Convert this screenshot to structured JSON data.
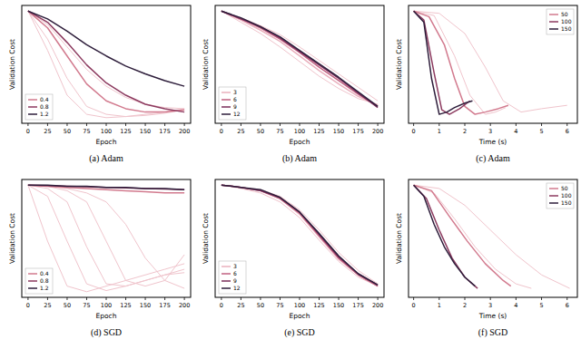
{
  "chart_data": [
    {
      "type": "line",
      "title": "(a) Adam",
      "x_label": "Epoch",
      "y_label": "Validation Cost",
      "x": [
        0,
        25,
        50,
        75,
        100,
        125,
        150,
        175,
        200
      ],
      "xlim": [
        -8,
        208
      ],
      "xticks": [
        0,
        25,
        50,
        75,
        100,
        125,
        150,
        175,
        200
      ],
      "ylim": [
        0,
        1.05
      ],
      "tick_labels": "x",
      "legend": "lower left",
      "series": [
        {
          "color": "#f0c4cc",
          "values": [
            1.0,
            0.75,
            0.4,
            0.15,
            0.08,
            0.06,
            0.07,
            0.09,
            0.12
          ]
        },
        {
          "color": "#f0c4cc",
          "values": [
            1.0,
            0.65,
            0.25,
            0.08,
            0.05,
            0.06,
            0.08,
            0.1,
            0.13
          ]
        },
        {
          "color": "#f0c4cc",
          "values": [
            1.0,
            0.88,
            0.68,
            0.48,
            0.33,
            0.23,
            0.17,
            0.14,
            0.13
          ]
        },
        {
          "name": "0.4",
          "color": "#d27a8e",
          "values": [
            1.0,
            0.85,
            0.6,
            0.35,
            0.2,
            0.13,
            0.1,
            0.1,
            0.12
          ]
        },
        {
          "name": "0.8",
          "color": "#8c3a5f",
          "values": [
            1.0,
            0.9,
            0.72,
            0.52,
            0.36,
            0.25,
            0.17,
            0.13,
            0.1
          ]
        },
        {
          "name": "1.2",
          "color": "#2e1e3b",
          "values": [
            1.0,
            0.93,
            0.82,
            0.7,
            0.6,
            0.51,
            0.44,
            0.38,
            0.33
          ]
        }
      ]
    },
    {
      "type": "line",
      "title": "(b) Adam",
      "x_label": "Epoch",
      "y_label": "Validation Cost",
      "x": [
        0,
        25,
        50,
        75,
        100,
        125,
        150,
        175,
        200
      ],
      "xlim": [
        -8,
        208
      ],
      "xticks": [
        0,
        25,
        50,
        75,
        100,
        125,
        150,
        175,
        200
      ],
      "ylim": [
        0,
        1.05
      ],
      "tick_labels": "x",
      "legend": "lower left",
      "series": [
        {
          "color": "#f0c4cc",
          "values": [
            1.0,
            0.9,
            0.8,
            0.68,
            0.55,
            0.42,
            0.31,
            0.22,
            0.17
          ]
        },
        {
          "color": "#f0c4cc",
          "values": [
            1.0,
            0.94,
            0.87,
            0.79,
            0.68,
            0.56,
            0.44,
            0.32,
            0.2
          ]
        },
        {
          "name": "3",
          "color": "#eab0bd",
          "values": [
            1.0,
            0.92,
            0.83,
            0.73,
            0.6,
            0.47,
            0.35,
            0.24,
            0.16
          ]
        },
        {
          "name": "6",
          "color": "#c06080",
          "values": [
            1.0,
            0.93,
            0.85,
            0.75,
            0.63,
            0.5,
            0.38,
            0.26,
            0.15
          ]
        },
        {
          "name": "9",
          "color": "#7a2e5a",
          "values": [
            1.0,
            0.93,
            0.86,
            0.76,
            0.64,
            0.52,
            0.4,
            0.27,
            0.14
          ]
        },
        {
          "name": "12",
          "color": "#2e1e3b",
          "values": [
            1.0,
            0.94,
            0.86,
            0.77,
            0.65,
            0.53,
            0.41,
            0.28,
            0.15
          ]
        }
      ]
    },
    {
      "type": "line",
      "title": "(c) Adam",
      "x_label": "Time (s)",
      "y_label": "Validation Cost",
      "xlim": [
        -0.2,
        6.4
      ],
      "xticks": [
        0,
        1,
        2,
        3,
        4,
        5,
        6
      ],
      "ylim": [
        0,
        1.05
      ],
      "tick_labels": "x",
      "legend": "upper right",
      "series": [
        {
          "color": "#f0c4cc",
          "x": [
            0,
            1.0,
            2.0,
            2.8,
            3.5,
            4.2,
            5.0,
            6.0
          ],
          "values": [
            1.0,
            0.98,
            0.8,
            0.5,
            0.2,
            0.1,
            0.13,
            0.16
          ]
        },
        {
          "color": "#f0c4cc",
          "x": [
            0,
            0.8,
            1.6,
            2.2,
            2.8,
            3.2,
            3.6
          ],
          "values": [
            1.0,
            0.96,
            0.6,
            0.25,
            0.08,
            0.1,
            0.14
          ]
        },
        {
          "name": "50",
          "color": "#d27a8e",
          "x": [
            0,
            0.6,
            1.2,
            1.6,
            2.0,
            2.4,
            2.8,
            3.3,
            3.7
          ],
          "values": [
            1.0,
            0.95,
            0.7,
            0.4,
            0.15,
            0.08,
            0.1,
            0.13,
            0.16
          ]
        },
        {
          "name": "100",
          "color": "#8c3a5f",
          "x": [
            0,
            0.4,
            0.8,
            1.1,
            1.4,
            1.8,
            2.2
          ],
          "values": [
            1.0,
            0.92,
            0.45,
            0.12,
            0.08,
            0.13,
            0.2
          ]
        },
        {
          "name": "150",
          "color": "#2e1e3b",
          "x": [
            0,
            0.4,
            0.7,
            1.0,
            1.3,
            1.6,
            2.0,
            2.3
          ],
          "values": [
            1.0,
            0.9,
            0.4,
            0.08,
            0.1,
            0.14,
            0.18,
            0.2
          ]
        }
      ]
    },
    {
      "type": "line",
      "title": "(d) SGD",
      "x_label": "Epoch",
      "y_label": "Validation Cost",
      "x": [
        0,
        25,
        50,
        75,
        100,
        125,
        150,
        175,
        200
      ],
      "xlim": [
        -8,
        208
      ],
      "xticks": [
        0,
        25,
        50,
        75,
        100,
        125,
        150,
        175,
        200
      ],
      "ylim": [
        0,
        1.05
      ],
      "tick_labels": "x",
      "legend": "lower left",
      "series": [
        {
          "color": "#f0c4cc",
          "values": [
            1.0,
            0.5,
            0.1,
            0.05,
            0.1,
            0.15,
            0.2,
            0.25,
            0.3
          ]
        },
        {
          "color": "#f0c4cc",
          "values": [
            1.0,
            0.9,
            0.5,
            0.12,
            0.06,
            0.1,
            0.15,
            0.2,
            0.25
          ]
        },
        {
          "color": "#f0c4cc",
          "values": [
            1.0,
            0.97,
            0.85,
            0.45,
            0.12,
            0.1,
            0.15,
            0.2,
            0.22
          ]
        },
        {
          "color": "#f0c4cc",
          "values": [
            1.0,
            0.99,
            0.95,
            0.85,
            0.5,
            0.15,
            0.1,
            0.15,
            0.38
          ]
        },
        {
          "color": "#f0c4cc",
          "values": [
            1.0,
            0.99,
            0.97,
            0.93,
            0.85,
            0.65,
            0.35,
            0.15,
            0.08
          ]
        },
        {
          "name": "0.4",
          "color": "#d27a8e",
          "values": [
            1.0,
            0.99,
            0.98,
            0.97,
            0.96,
            0.95,
            0.94,
            0.93,
            0.93
          ]
        },
        {
          "name": "0.8",
          "color": "#8c3a5f",
          "values": [
            1.0,
            0.995,
            0.99,
            0.985,
            0.98,
            0.975,
            0.97,
            0.965,
            0.96
          ]
        },
        {
          "name": "1.2",
          "color": "#2e1e3b",
          "values": [
            1.0,
            1.0,
            0.99,
            0.99,
            0.98,
            0.98,
            0.97,
            0.97,
            0.96
          ]
        }
      ]
    },
    {
      "type": "line",
      "title": "(e) SGD",
      "x_label": "Epoch",
      "y_label": "Validation Cost",
      "x": [
        0,
        25,
        50,
        75,
        100,
        125,
        150,
        175,
        200
      ],
      "xlim": [
        -8,
        208
      ],
      "xticks": [
        0,
        25,
        50,
        75,
        100,
        125,
        150,
        175,
        200
      ],
      "ylim": [
        0,
        1.05
      ],
      "tick_labels": "x",
      "legend": "lower left",
      "series": [
        {
          "color": "#f0c4cc",
          "values": [
            1.0,
            0.97,
            0.93,
            0.85,
            0.71,
            0.51,
            0.32,
            0.18,
            0.1
          ]
        },
        {
          "color": "#f0c4cc",
          "values": [
            1.0,
            0.98,
            0.96,
            0.9,
            0.78,
            0.6,
            0.4,
            0.24,
            0.12
          ]
        },
        {
          "name": "3",
          "color": "#eab0bd",
          "values": [
            1.0,
            0.98,
            0.95,
            0.88,
            0.74,
            0.54,
            0.34,
            0.2,
            0.1
          ]
        },
        {
          "name": "6",
          "color": "#c06080",
          "values": [
            1.0,
            0.98,
            0.95,
            0.88,
            0.75,
            0.55,
            0.35,
            0.2,
            0.1
          ]
        },
        {
          "name": "9",
          "color": "#7a2e5a",
          "values": [
            1.0,
            0.98,
            0.95,
            0.89,
            0.76,
            0.56,
            0.36,
            0.21,
            0.11
          ]
        },
        {
          "name": "12",
          "color": "#2e1e3b",
          "values": [
            1.0,
            0.98,
            0.96,
            0.89,
            0.76,
            0.57,
            0.37,
            0.21,
            0.11
          ]
        }
      ]
    },
    {
      "type": "line",
      "title": "(f) SGD",
      "x_label": "Time (s)",
      "y_label": "Validation Cost",
      "xlim": [
        -0.2,
        6.4
      ],
      "xticks": [
        0,
        1,
        2,
        3,
        4,
        5,
        6
      ],
      "ylim": [
        0,
        1.05
      ],
      "tick_labels": "x",
      "legend": "upper right",
      "series": [
        {
          "color": "#f0c4cc",
          "x": [
            0,
            1,
            2,
            3,
            4,
            5,
            6.1
          ],
          "values": [
            1.0,
            0.97,
            0.82,
            0.6,
            0.38,
            0.2,
            0.08
          ]
        },
        {
          "color": "#f0c4cc",
          "x": [
            0,
            0.8,
            1.6,
            2.4,
            3.2,
            4.0,
            4.6
          ],
          "values": [
            1.0,
            0.93,
            0.7,
            0.45,
            0.25,
            0.12,
            0.08
          ]
        },
        {
          "name": "50",
          "color": "#d27a8e",
          "x": [
            0,
            0.7,
            1.4,
            2.1,
            2.8,
            3.5,
            3.8
          ],
          "values": [
            1.0,
            0.95,
            0.72,
            0.5,
            0.3,
            0.15,
            0.1
          ]
        },
        {
          "name": "100",
          "color": "#8c3a5f",
          "x": [
            0,
            0.5,
            1.0,
            1.5,
            2.0,
            2.5
          ],
          "values": [
            1.0,
            0.88,
            0.6,
            0.35,
            0.18,
            0.08
          ]
        },
        {
          "name": "150",
          "color": "#2e1e3b",
          "x": [
            0,
            0.4,
            0.8,
            1.2,
            1.6,
            2.0,
            2.4
          ],
          "values": [
            1.0,
            0.9,
            0.65,
            0.45,
            0.3,
            0.18,
            0.1
          ]
        }
      ]
    }
  ]
}
